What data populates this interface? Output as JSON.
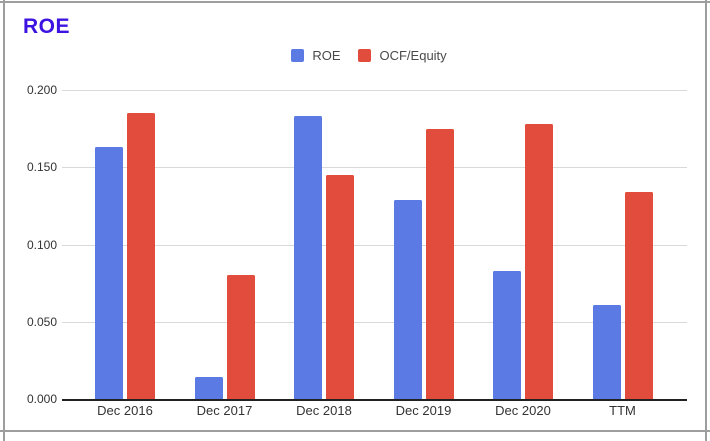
{
  "chart_data": {
    "type": "bar",
    "title": "ROE",
    "title_color": "#3c13e0",
    "categories": [
      "Dec 2016",
      "Dec 2017",
      "Dec 2018",
      "Dec 2019",
      "Dec 2020",
      "TTM"
    ],
    "series": [
      {
        "name": "ROE",
        "color": "#5b7ae3",
        "values": [
          0.163,
          0.014,
          0.183,
          0.129,
          0.083,
          0.061
        ]
      },
      {
        "name": "OCF/Equity",
        "color": "#e24c3c",
        "values": [
          0.185,
          0.08,
          0.145,
          0.175,
          0.178,
          0.134
        ]
      }
    ],
    "ylim": [
      0,
      0.2
    ],
    "y_ticks": [
      {
        "value": 0.2,
        "label": "0.200"
      },
      {
        "value": 0.15,
        "label": "0.150"
      },
      {
        "value": 0.1,
        "label": "0.100"
      },
      {
        "value": 0.05,
        "label": "0.050"
      },
      {
        "value": 0.0,
        "label": "0.000"
      }
    ],
    "grid": true,
    "legend_position": "top"
  }
}
